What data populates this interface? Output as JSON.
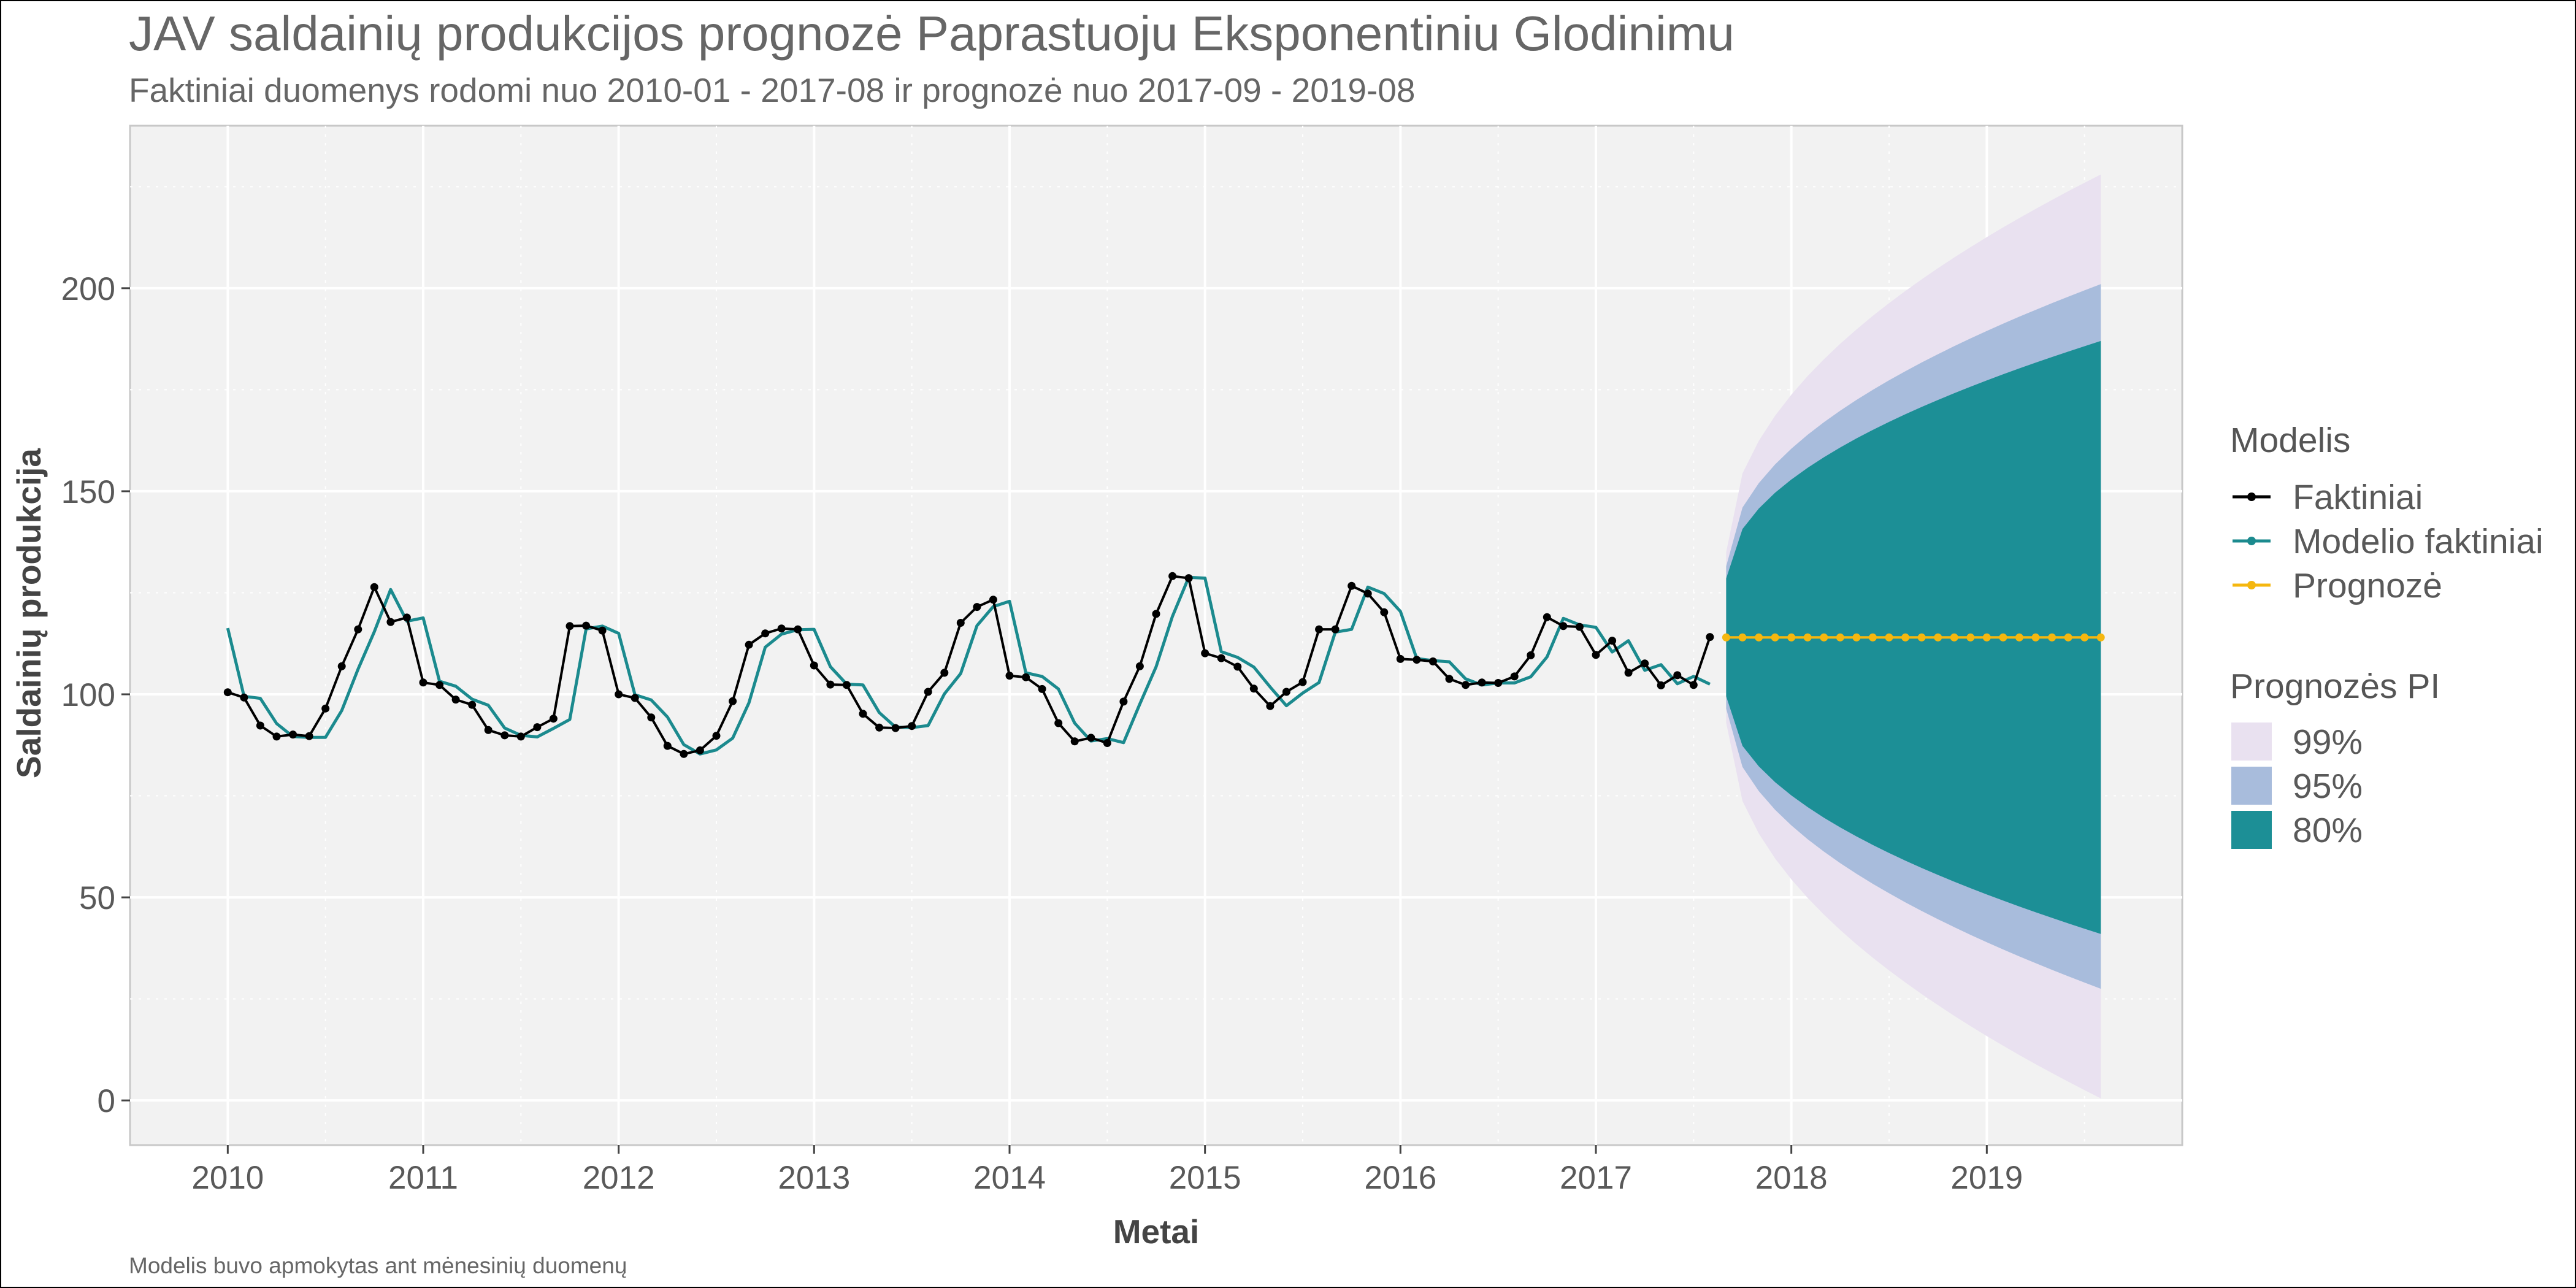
{
  "chart_data": {
    "type": "line",
    "title": "JAV saldainių produkcijos prognozė Paprastuoju Eksponentiniu Glodinimu",
    "subtitle": "Faktiniai duomenys rodomi nuo 2010-01 - 2017-08 ir prognozė nuo 2017-09 - 2019-08",
    "caption": "Modelis buvo apmokytas ant mėnesinių duomenų",
    "xlabel": "Metai",
    "ylabel": "Saldainių produkcija",
    "xlim": [
      "2009-07",
      "2020-01"
    ],
    "ylim": [
      -11,
      240
    ],
    "x_ticks": [
      "2010",
      "2011",
      "2012",
      "2013",
      "2014",
      "2015",
      "2016",
      "2017",
      "2018",
      "2019"
    ],
    "y_ticks": [
      0,
      50,
      100,
      150,
      200
    ],
    "grid": true,
    "legend": {
      "placement": "right",
      "model_title": "Modelis",
      "pi_title": "Prognozės PI",
      "lines": [
        {
          "label": "Faktiniai",
          "color": "#000000"
        },
        {
          "label": "Modelio faktiniai",
          "color": "#1b8a8e"
        },
        {
          "label": "Prognozė",
          "color": "#f5b70f"
        }
      ],
      "bands": [
        {
          "label": "99%",
          "color": "#e9e1f0"
        },
        {
          "label": "95%",
          "color": "#a8bcdc"
        },
        {
          "label": "80%",
          "color": "#1c8f96"
        }
      ]
    },
    "series": [
      {
        "name": "Faktiniai",
        "start": "2010-01",
        "values": [
          100.5,
          99.2,
          92.3,
          89.6,
          90.1,
          89.7,
          96.5,
          106.9,
          116.0,
          126.4,
          117.8,
          118.9,
          102.9,
          102.3,
          98.7,
          97.4,
          91.2,
          89.9,
          89.6,
          91.9,
          94.0,
          116.8,
          116.9,
          115.7,
          100.0,
          99.1,
          94.3,
          87.3,
          85.3,
          86.2,
          89.8,
          98.3,
          112.2,
          115.0,
          116.2,
          116.0,
          107.1,
          102.4,
          102.3,
          95.2,
          91.8,
          91.7,
          92.2,
          100.6,
          105.3,
          117.6,
          121.5,
          123.3,
          104.6,
          104.2,
          101.3,
          92.9,
          88.4,
          89.3,
          88.0,
          98.2,
          106.9,
          119.8,
          129.1,
          128.6,
          110.1,
          108.9,
          106.8,
          101.4,
          97.1,
          100.6,
          103.0,
          116.0,
          116.0,
          126.7,
          124.8,
          120.2,
          108.7,
          108.5,
          108.1,
          103.8,
          102.3,
          102.9,
          102.8,
          104.4,
          109.6,
          119.0,
          116.8,
          116.6,
          109.7,
          113.2,
          105.3,
          107.6,
          102.2,
          104.7,
          102.3,
          114.1
        ]
      },
      {
        "name": "Modelio faktiniai",
        "start": "2010-01",
        "values": [
          116.3,
          99.5,
          99.0,
          92.8,
          89.6,
          89.4,
          89.4,
          96.0,
          106.2,
          115.4,
          125.8,
          118.0,
          118.8,
          103.2,
          102.0,
          98.8,
          97.3,
          91.7,
          89.9,
          89.5,
          91.6,
          93.8,
          116.1,
          116.8,
          115.0,
          99.9,
          98.6,
          94.4,
          87.6,
          85.3,
          86.3,
          89.2,
          97.9,
          111.6,
          114.8,
          115.9,
          116.0,
          106.8,
          102.5,
          102.3,
          95.5,
          91.9,
          91.8,
          92.3,
          100.1,
          105.1,
          116.9,
          121.6,
          122.9,
          105.3,
          104.4,
          101.3,
          92.9,
          88.5,
          89.1,
          88.1,
          97.6,
          106.8,
          119.2,
          128.8,
          128.6,
          110.5,
          109.1,
          106.7,
          101.8,
          97.2,
          100.3,
          102.9,
          115.3,
          116.0,
          126.4,
          124.8,
          120.4,
          108.8,
          108.3,
          108.0,
          103.8,
          102.3,
          102.8,
          102.8,
          104.3,
          109.2,
          118.7,
          117.1,
          116.5,
          110.4,
          113.2,
          105.9,
          107.3,
          102.6,
          104.4,
          102.5
        ]
      },
      {
        "name": "Prognozė",
        "start": "2017-09",
        "values": [
          114.0,
          114.0,
          114.0,
          114.0,
          114.0,
          114.0,
          114.0,
          114.0,
          114.0,
          114.0,
          114.0,
          114.0,
          114.0,
          114.0,
          114.0,
          114.0,
          114.0,
          114.0,
          114.0,
          114.0,
          114.0,
          114.0,
          114.0,
          114.0
        ]
      }
    ],
    "intervals": [
      {
        "name": "99%",
        "start": "2017-09",
        "lower_first": 93.0,
        "upper_first": 135.0,
        "lower_last": 0.5,
        "upper_last": 228.0
      },
      {
        "name": "95%",
        "start": "2017-09",
        "lower_first": 96.5,
        "upper_first": 131.5,
        "lower_last": 27.5,
        "upper_last": 201.0
      },
      {
        "name": "80%",
        "start": "2017-09",
        "lower_first": 99.5,
        "upper_first": 128.5,
        "lower_last": 41.0,
        "upper_last": 187.0
      }
    ]
  }
}
